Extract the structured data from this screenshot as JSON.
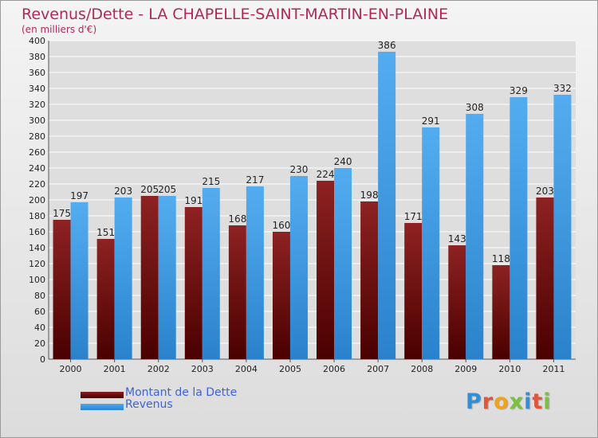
{
  "header": {
    "title": "Revenus/Dette - LA CHAPELLE-SAINT-MARTIN-EN-PLAINE",
    "subtitle": "(en milliers d'€)"
  },
  "legend": {
    "dette_label": "Montant de la Dette",
    "revenus_label": "Revenus"
  },
  "logo": {
    "letters": [
      "P",
      "r",
      "o",
      "x",
      "i",
      "t",
      "i"
    ],
    "colors": [
      "#2f8fd8",
      "#e0563a",
      "#f2a21a",
      "#7cc13c",
      "#2f8fd8",
      "#e0563a",
      "#7cc13c"
    ]
  },
  "colors": {
    "dette": "#6e0e0e",
    "revenus": "#3f9be6",
    "grid": "#ffffff",
    "axis_text": "#222222"
  },
  "chart_data": {
    "type": "bar",
    "title": "Revenus/Dette - LA CHAPELLE-SAINT-MARTIN-EN-PLAINE",
    "subtitle": "(en milliers d'€)",
    "xlabel": "",
    "ylabel": "",
    "categories": [
      "2000",
      "2001",
      "2002",
      "2003",
      "2004",
      "2005",
      "2006",
      "2007",
      "2008",
      "2009",
      "2010",
      "2011"
    ],
    "series": [
      {
        "name": "Montant de la Dette",
        "values": [
          175,
          151,
          205,
          191,
          168,
          160,
          224,
          198,
          171,
          143,
          118,
          203
        ]
      },
      {
        "name": "Revenus",
        "values": [
          197,
          203,
          205,
          215,
          217,
          230,
          240,
          386,
          291,
          308,
          329,
          332
        ]
      }
    ],
    "ylim": [
      0,
      400
    ],
    "yticks": [
      0,
      20,
      40,
      60,
      80,
      100,
      120,
      140,
      160,
      180,
      200,
      220,
      240,
      260,
      280,
      300,
      320,
      340,
      360,
      380,
      400
    ],
    "grid": true,
    "legend_position": "bottom-left"
  }
}
